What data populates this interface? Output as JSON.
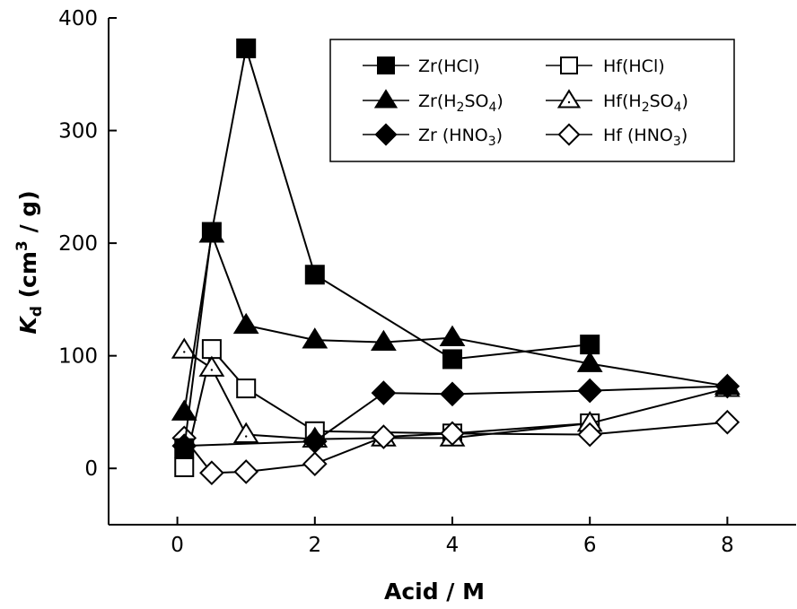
{
  "chart_data": {
    "type": "line",
    "title": "",
    "xlabel": "Acid / M",
    "ylabel_main": "K",
    "ylabel_sub": "d",
    "ylabel_rest": " (cm",
    "ylabel_sup": "3",
    "ylabel_tail": " / g)",
    "xlim": [
      -1,
      9
    ],
    "ylim": [
      -50,
      400
    ],
    "xticks": [
      0,
      2,
      4,
      6,
      8
    ],
    "yticks": [
      0,
      100,
      200,
      300,
      400
    ],
    "grid": false,
    "legend_position": "top-right",
    "series": [
      {
        "name": "Zr(HCl)",
        "label_parts": [
          "Zr(HCl)"
        ],
        "marker": "square",
        "filled": true,
        "color": "#000000",
        "x": [
          0.1,
          0.5,
          1,
          2,
          4,
          6
        ],
        "y": [
          18,
          210,
          373,
          172,
          97,
          110
        ]
      },
      {
        "name": "Hf(HCl)",
        "label_parts": [
          "Hf(HCl)"
        ],
        "marker": "square",
        "filled": false,
        "color": "#000000",
        "x": [
          0.1,
          0.5,
          1,
          2,
          4,
          6
        ],
        "y": [
          1,
          106,
          71,
          33,
          31,
          40
        ]
      },
      {
        "name": "Zr(H2SO4)",
        "label_parts": [
          "Zr(H",
          "2",
          "SO",
          "4",
          ")"
        ],
        "marker": "triangle",
        "filled": true,
        "color": "#000000",
        "x": [
          0.1,
          0.5,
          1,
          2,
          3,
          4,
          6,
          8
        ],
        "y": [
          50,
          208,
          127,
          114,
          112,
          116,
          93,
          73
        ]
      },
      {
        "name": "Hf(H2SO4)",
        "label_parts": [
          "Hf(H",
          "2",
          "SO",
          "4",
          ")"
        ],
        "marker": "triangle",
        "filled": false,
        "color": "#000000",
        "x": [
          0.1,
          0.5,
          1,
          2,
          3,
          4,
          6,
          8
        ],
        "y": [
          105,
          89,
          30,
          26,
          27,
          27,
          40,
          71
        ]
      },
      {
        "name": "Zr (HNO3)",
        "label_parts": [
          "Zr (HNO",
          "3",
          ")"
        ],
        "marker": "diamond",
        "filled": true,
        "color": "#000000",
        "x": [
          0.1,
          2,
          3,
          4,
          6,
          8
        ],
        "y": [
          20,
          24,
          67,
          66,
          69,
          73
        ]
      },
      {
        "name": "Hf (HNO3)",
        "label_parts": [
          "Hf (HNO",
          "3",
          ")"
        ],
        "marker": "diamond",
        "filled": false,
        "color": "#000000",
        "x": [
          0.1,
          0.5,
          1,
          2,
          3,
          4,
          6,
          8
        ],
        "y": [
          27,
          -4,
          -3,
          4,
          28,
          31,
          30,
          41
        ]
      }
    ]
  }
}
